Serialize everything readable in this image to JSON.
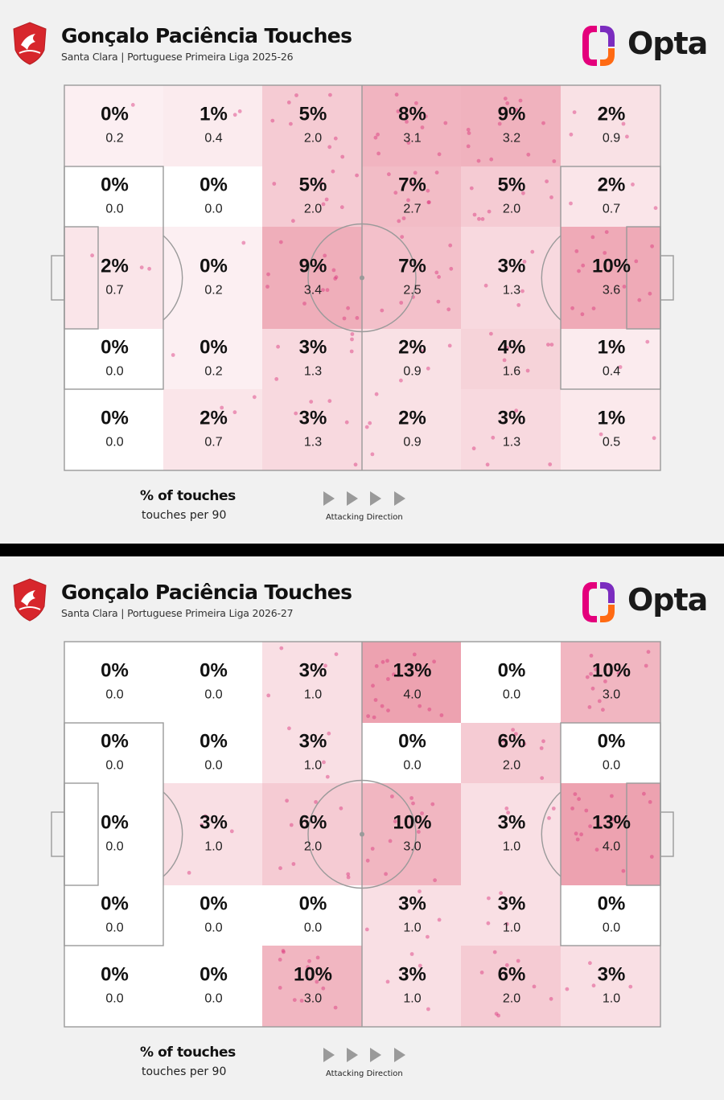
{
  "accent_color": "#e8889a",
  "panels": [
    {
      "title": "Gonçalo Paciência Touches",
      "subtitle": "Santa Clara | Portuguese Primeira Liga 2025-26",
      "brand": "Opta",
      "legend_main": "% of touches",
      "legend_sub": "touches per 90",
      "direction_label": "Attacking Direction",
      "icons": {
        "club": "santa-clara-crest-icon",
        "brand": "opta-logo-icon",
        "direction": "arrow-right-icon"
      },
      "chart_data": {
        "type": "heatmap",
        "grid_cols": 6,
        "grid_rows": 5,
        "cells": [
          [
            "0%",
            "0.2",
            "1%",
            "0.4",
            "5%",
            "2.0",
            "8%",
            "3.1",
            "9%",
            "3.2",
            "2%",
            "0.9"
          ],
          [
            "0%",
            "0.0",
            "0%",
            "0.0",
            "5%",
            "2.0",
            "7%",
            "2.7",
            "5%",
            "2.0",
            "2%",
            "0.7"
          ],
          [
            "2%",
            "0.7",
            "0%",
            "0.2",
            "9%",
            "3.4",
            "7%",
            "2.5",
            "3%",
            "1.3",
            "10%",
            "3.6"
          ],
          [
            "0%",
            "0.0",
            "0%",
            "0.2",
            "3%",
            "1.3",
            "2%",
            "0.9",
            "4%",
            "1.6",
            "1%",
            "0.4"
          ],
          [
            "0%",
            "0.0",
            "2%",
            "0.7",
            "3%",
            "1.3",
            "2%",
            "0.9",
            "3%",
            "1.3",
            "1%",
            "0.5"
          ]
        ]
      }
    },
    {
      "title": "Gonçalo Paciência Touches",
      "subtitle": "Santa Clara | Portuguese Primeira Liga 2026-27",
      "brand": "Opta",
      "legend_main": "% of touches",
      "legend_sub": "touches per 90",
      "direction_label": "Attacking Direction",
      "icons": {
        "club": "santa-clara-crest-icon",
        "brand": "opta-logo-icon",
        "direction": "arrow-right-icon"
      },
      "chart_data": {
        "type": "heatmap",
        "grid_cols": 6,
        "grid_rows": 5,
        "cells": [
          [
            "0%",
            "0.0",
            "0%",
            "0.0",
            "3%",
            "1.0",
            "13%",
            "4.0",
            "0%",
            "0.0",
            "10%",
            "3.0"
          ],
          [
            "0%",
            "0.0",
            "0%",
            "0.0",
            "3%",
            "1.0",
            "0%",
            "0.0",
            "6%",
            "2.0",
            "0%",
            "0.0"
          ],
          [
            "0%",
            "0.0",
            "3%",
            "1.0",
            "6%",
            "2.0",
            "10%",
            "3.0",
            "3%",
            "1.0",
            "13%",
            "4.0"
          ],
          [
            "0%",
            "0.0",
            "0%",
            "0.0",
            "0%",
            "0.0",
            "3%",
            "1.0",
            "3%",
            "1.0",
            "0%",
            "0.0"
          ],
          [
            "0%",
            "0.0",
            "0%",
            "0.0",
            "10%",
            "3.0",
            "3%",
            "1.0",
            "6%",
            "2.0",
            "3%",
            "1.0"
          ]
        ]
      }
    }
  ]
}
